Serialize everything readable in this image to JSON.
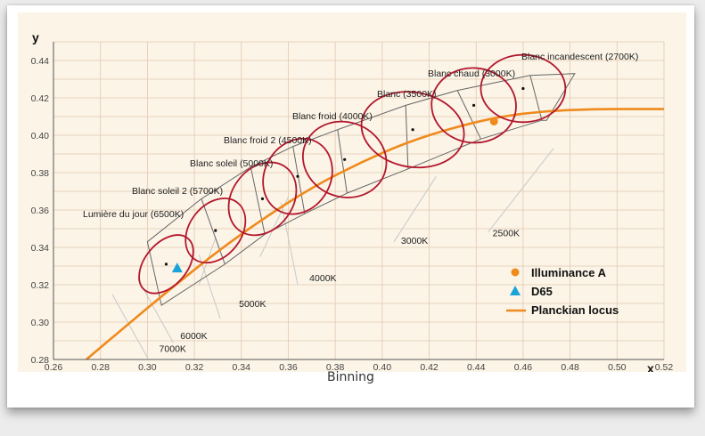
{
  "caption": "Binning",
  "chart_data": {
    "type": "scatter",
    "title": "",
    "xlabel": "x",
    "ylabel": "y",
    "xlim": [
      0.26,
      0.52
    ],
    "ylim": [
      0.28,
      0.45
    ],
    "grid": true,
    "legend_position": "bottom-right",
    "x_ticks": [
      "0.26",
      "0.28",
      "0.30",
      "0.32",
      "0.34",
      "0.36",
      "0.38",
      "0.40",
      "0.42",
      "0.44",
      "0.46",
      "0.48",
      "0.50",
      "0.52"
    ],
    "y_ticks": [
      "0.28",
      "0.30",
      "0.32",
      "0.34",
      "0.36",
      "0.38",
      "0.40",
      "0.42",
      "0.44"
    ],
    "planckian_locus": {
      "name": "Planckian locus",
      "color": "#ef8a1c",
      "x": [
        0.274,
        0.29,
        0.31,
        0.33,
        0.35,
        0.37,
        0.39,
        0.41,
        0.43,
        0.45,
        0.47,
        0.49,
        0.51,
        0.52
      ],
      "y": [
        0.28,
        0.297,
        0.318,
        0.338,
        0.356,
        0.372,
        0.385,
        0.396,
        0.404,
        0.41,
        0.413,
        0.414,
        0.414,
        0.414
      ]
    },
    "markers": [
      {
        "name": "Illuminance A",
        "symbol": "circle",
        "color": "#ef8a1c",
        "x": 0.4476,
        "y": 0.4074
      },
      {
        "name": "D65",
        "symbol": "triangle",
        "color": "#1aa3d9",
        "x": 0.3127,
        "y": 0.329
      }
    ],
    "bins": [
      {
        "label": "Lumière du jour (6500K)",
        "x": 0.308,
        "y": 0.331,
        "rx": 0.009,
        "ry": 0.018,
        "rot": 40
      },
      {
        "label": "Blanc soleil 2 (5700K)",
        "x": 0.329,
        "y": 0.349,
        "rx": 0.011,
        "ry": 0.019,
        "rot": 38
      },
      {
        "label": "Blanc soleil (5000K)",
        "x": 0.349,
        "y": 0.366,
        "rx": 0.013,
        "ry": 0.021,
        "rot": 36
      },
      {
        "label": "Blanc froid 2 (4500K)",
        "x": 0.364,
        "y": 0.378,
        "rx": 0.014,
        "ry": 0.021,
        "rot": 30
      },
      {
        "label": "Blanc froid (4000K)",
        "x": 0.384,
        "y": 0.387,
        "rx": 0.018,
        "ry": 0.02,
        "rot": 20
      },
      {
        "label": "Blanc (3500K)",
        "x": 0.413,
        "y": 0.403,
        "rx": 0.022,
        "ry": 0.02,
        "rot": 10
      },
      {
        "label": "Blanc chaud (3000K)",
        "x": 0.439,
        "y": 0.416,
        "rx": 0.018,
        "ry": 0.02,
        "rot": 5
      },
      {
        "label": "Blanc incandescent (2700K)",
        "x": 0.46,
        "y": 0.425,
        "rx": 0.018,
        "ry": 0.018,
        "rot": 0
      }
    ],
    "isotherm_labels": [
      {
        "text": "7000K",
        "x": 0.305,
        "y": 0.284
      },
      {
        "text": "6000K",
        "x": 0.314,
        "y": 0.291
      },
      {
        "text": "5000K",
        "x": 0.339,
        "y": 0.308
      },
      {
        "text": "4000K",
        "x": 0.369,
        "y": 0.322
      },
      {
        "text": "3000K",
        "x": 0.408,
        "y": 0.342
      },
      {
        "text": "2500K",
        "x": 0.447,
        "y": 0.346
      }
    ]
  }
}
